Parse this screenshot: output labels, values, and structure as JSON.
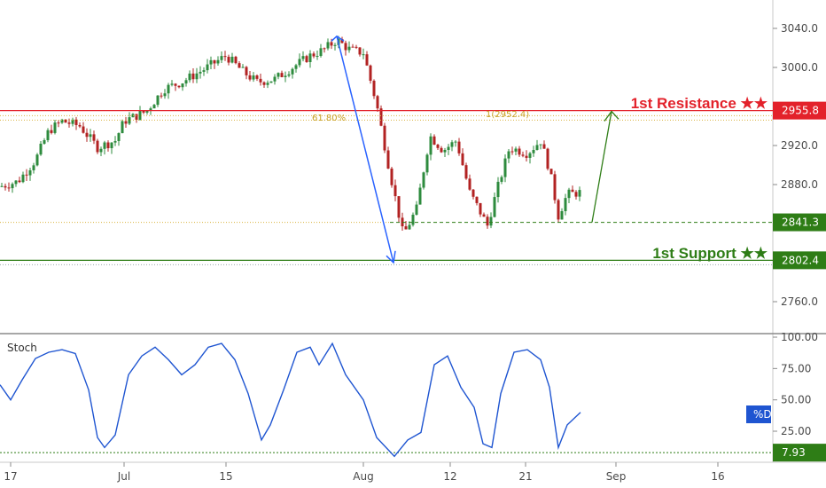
{
  "chart_data": {
    "type": "candlestick",
    "price_axis": {
      "ylim": [
        2728,
        3060
      ],
      "ticks": [
        3040.0,
        3000.0,
        2920.0,
        2880.0,
        2760.0
      ],
      "tick_labels": [
        "3040.0",
        "3000.0",
        "2920.0",
        "2880.0",
        "2760.0"
      ]
    },
    "time_axis": {
      "labels": [
        "17",
        "Jul",
        "15",
        "Aug",
        "12",
        "21",
        "Sep",
        "16"
      ]
    },
    "levels": [
      {
        "id": "resistance",
        "value": 2955.8,
        "label": "2955.8",
        "color": "#e3222b",
        "annotation": "1st Resistance ★★"
      },
      {
        "id": "support",
        "value": 2802.4,
        "label": "2802.4",
        "color": "#2e7d16",
        "annotation": "1st Support ★★"
      },
      {
        "id": "pivot",
        "value": 2841.3,
        "label": "2841.3",
        "color": "#2e7d16",
        "annotation": ""
      }
    ],
    "fibonacci": [
      {
        "value": 2952.4,
        "label": "61.80%"
      },
      {
        "value": 2952.4,
        "label": "1(2952.4)"
      }
    ],
    "stochastic": {
      "title": "Stoch",
      "ylim": [
        0,
        105
      ],
      "ticks": [
        100.0,
        75.0,
        50.0,
        25.0
      ],
      "tick_labels": [
        "100.00",
        "75.00",
        "50.00",
        "25.00"
      ],
      "level_value": 7.93,
      "level_label": "7.93",
      "series_badge": "%D",
      "series_color": "#1f55d1"
    },
    "colors": {
      "up": "#2e8b3e",
      "down": "#b22222",
      "arrow_down": "#2962ff",
      "arrow_up": "#2e7d16"
    }
  }
}
